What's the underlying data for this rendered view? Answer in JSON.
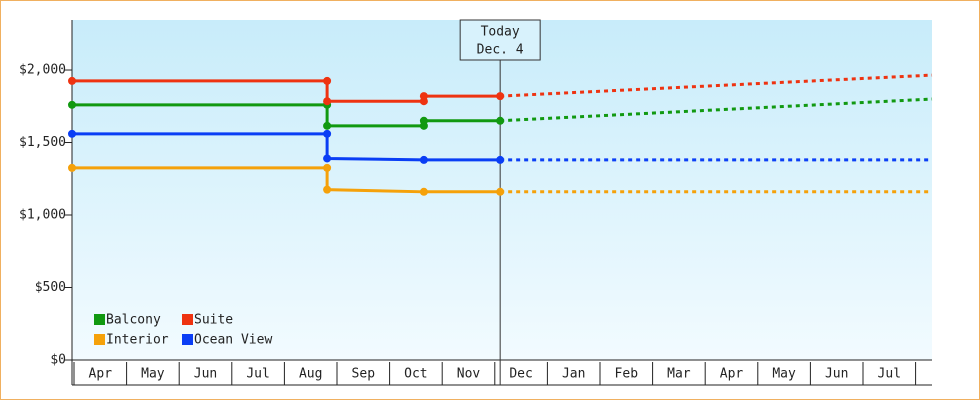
{
  "chart_data": {
    "type": "step-line",
    "ylim": [
      0,
      2345
    ],
    "yticks": [
      {
        "value": 0,
        "label": "$0"
      },
      {
        "value": 500,
        "label": "$500"
      },
      {
        "value": 1000,
        "label": "$1,000"
      },
      {
        "value": 1500,
        "label": "$1,500"
      },
      {
        "value": 2000,
        "label": "$2,000"
      }
    ],
    "xlim": [
      0,
      16.35
    ],
    "xticks": [
      {
        "value": 0,
        "label": "Apr"
      },
      {
        "value": 1,
        "label": "May"
      },
      {
        "value": 2,
        "label": "Jun"
      },
      {
        "value": 3,
        "label": "Jul"
      },
      {
        "value": 4,
        "label": "Aug"
      },
      {
        "value": 5,
        "label": "Sep"
      },
      {
        "value": 6,
        "label": "Oct"
      },
      {
        "value": 7,
        "label": "Nov"
      },
      {
        "value": 8,
        "label": "Dec"
      },
      {
        "value": 9,
        "label": "Jan"
      },
      {
        "value": 10,
        "label": "Feb"
      },
      {
        "value": 11,
        "label": "Mar"
      },
      {
        "value": 12,
        "label": "Apr"
      },
      {
        "value": 13,
        "label": "May"
      },
      {
        "value": 14,
        "label": "Jun"
      },
      {
        "value": 15,
        "label": "Jul"
      }
    ],
    "annotation": {
      "lines": [
        "Today",
        "Dec. 4"
      ],
      "x": 8.14
    },
    "series": [
      {
        "name": "Balcony",
        "color": "#119911",
        "x": [
          0,
          4.85,
          4.85,
          6.69,
          6.69,
          8.14
        ],
        "values": [
          1760,
          1760,
          1615,
          1615,
          1650,
          1650
        ],
        "projection": {
          "x": [
            8.14,
            16.35
          ],
          "values": [
            1650,
            1800
          ]
        }
      },
      {
        "name": "Suite",
        "color": "#ee3311",
        "x": [
          0,
          4.85,
          4.85,
          6.69,
          6.69,
          8.14
        ],
        "values": [
          1925,
          1925,
          1785,
          1785,
          1820,
          1820
        ],
        "projection": {
          "x": [
            8.14,
            16.35
          ],
          "values": [
            1820,
            1965
          ]
        }
      },
      {
        "name": "Interior",
        "color": "#f5a10a",
        "x": [
          0,
          4.85,
          4.85,
          6.69,
          8.14
        ],
        "values": [
          1325,
          1325,
          1175,
          1160,
          1160
        ],
        "projection": {
          "x": [
            8.14,
            16.35
          ],
          "values": [
            1160,
            1160
          ]
        }
      },
      {
        "name": "Ocean View",
        "color": "#0a3ef5",
        "x": [
          0,
          4.85,
          4.85,
          6.69,
          8.14
        ],
        "values": [
          1560,
          1560,
          1390,
          1380,
          1380
        ],
        "projection": {
          "x": [
            8.14,
            16.35
          ],
          "values": [
            1380,
            1380
          ]
        }
      }
    ]
  }
}
